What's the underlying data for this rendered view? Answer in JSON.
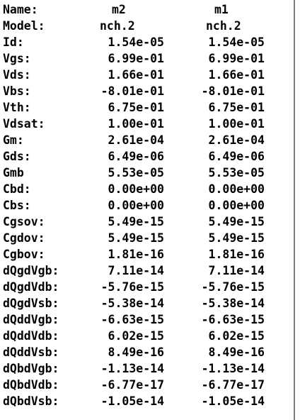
{
  "header": {
    "name_label": "Name:",
    "col1": "m2",
    "col2": "m1"
  },
  "model": {
    "label": "Model:",
    "col1": "nch.2",
    "col2": "nch.2"
  },
  "rows": [
    {
      "label": "Id:",
      "col1": "1.54e-05",
      "col2": "1.54e-05"
    },
    {
      "label": "Vgs:",
      "col1": "6.99e-01",
      "col2": "6.99e-01"
    },
    {
      "label": "Vds:",
      "col1": "1.66e-01",
      "col2": "1.66e-01"
    },
    {
      "label": "Vbs:",
      "col1": "-8.01e-01",
      "col2": "-8.01e-01"
    },
    {
      "label": "Vth:",
      "col1": "6.75e-01",
      "col2": "6.75e-01"
    },
    {
      "label": "Vdsat:",
      "col1": "1.00e-01",
      "col2": "1.00e-01"
    },
    {
      "label": "Gm:",
      "col1": "2.61e-04",
      "col2": "2.61e-04"
    },
    {
      "label": "Gds:",
      "col1": "6.49e-06",
      "col2": "6.49e-06"
    },
    {
      "label": "Gmb",
      "col1": "5.53e-05",
      "col2": "5.53e-05"
    },
    {
      "label": "Cbd:",
      "col1": "0.00e+00",
      "col2": "0.00e+00"
    },
    {
      "label": "Cbs:",
      "col1": "0.00e+00",
      "col2": "0.00e+00"
    },
    {
      "label": "Cgsov:",
      "col1": "5.49e-15",
      "col2": "5.49e-15"
    },
    {
      "label": "Cgdov:",
      "col1": "5.49e-15",
      "col2": "5.49e-15"
    },
    {
      "label": "Cgbov:",
      "col1": "1.81e-16",
      "col2": "1.81e-16"
    },
    {
      "label": "dQgdVgb:",
      "col1": "7.11e-14",
      "col2": "7.11e-14"
    },
    {
      "label": "dQgdVdb:",
      "col1": "-5.76e-15",
      "col2": "-5.76e-15"
    },
    {
      "label": "dQgdVsb:",
      "col1": "-5.38e-14",
      "col2": "-5.38e-14"
    },
    {
      "label": "dQddVgb:",
      "col1": "-6.63e-15",
      "col2": "-6.63e-15"
    },
    {
      "label": "dQddVdb:",
      "col1": "6.02e-15",
      "col2": "6.02e-15"
    },
    {
      "label": "dQddVsb:",
      "col1": "8.49e-16",
      "col2": "8.49e-16"
    },
    {
      "label": "dQbdVgb:",
      "col1": "-1.13e-14",
      "col2": "-1.13e-14"
    },
    {
      "label": "dQbdVdb:",
      "col1": "-6.77e-17",
      "col2": "-6.77e-17"
    },
    {
      "label": "dQbdVsb:",
      "col1": "-1.05e-14",
      "col2": "-1.05e-14"
    }
  ]
}
